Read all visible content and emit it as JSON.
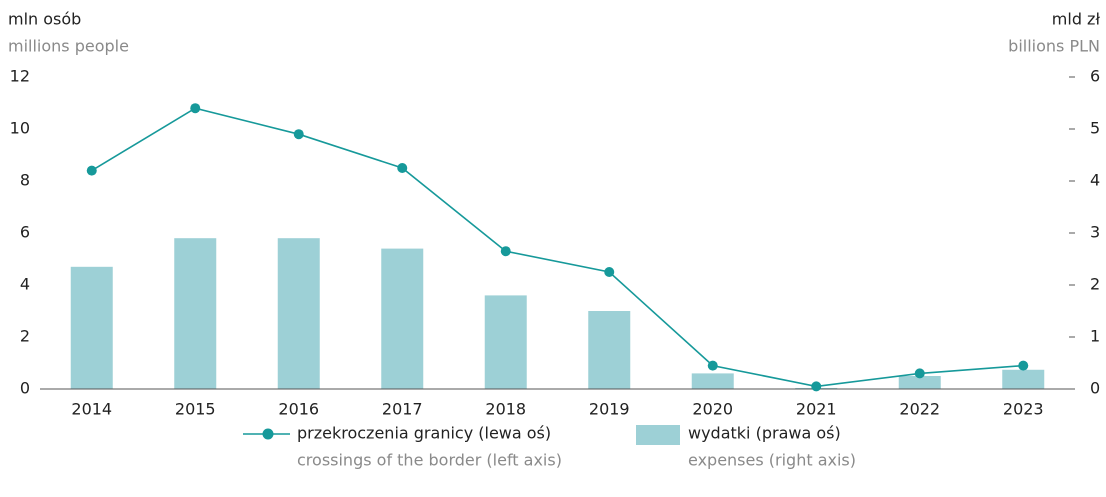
{
  "chart_data": {
    "type": "bar_line",
    "y_label": "mln osób",
    "y_label_en": "millions people",
    "y2_label": "mld zł",
    "y2_label_en": "billions PLN",
    "categories": [
      "2014",
      "2015",
      "2016",
      "2017",
      "2018",
      "2019",
      "2020",
      "2021",
      "2022",
      "2023"
    ],
    "series": [
      {
        "name": "przekroczenia granicy (lewa oś)",
        "name_en": "crossings of the border (left axis)",
        "type": "line",
        "color": "#16999a",
        "values": [
          8.4,
          10.8,
          9.8,
          8.5,
          5.3,
          4.5,
          0.9,
          0.1,
          0.6,
          0.9
        ]
      },
      {
        "name": "wydatki (prawa oś)",
        "name_en": "expenses (right axis)",
        "type": "bar",
        "color": "#9dd0d6",
        "axis": "y2",
        "values": [
          2.35,
          2.9,
          2.9,
          2.7,
          1.8,
          1.5,
          0.3,
          0.02,
          0.25,
          0.37
        ]
      }
    ],
    "ylim": [
      0,
      12
    ],
    "yticks": [
      0,
      2,
      4,
      6,
      8,
      10,
      12
    ],
    "y2lim": [
      0,
      6
    ],
    "y2ticks": [
      0,
      1,
      2,
      3,
      4,
      5,
      6
    ]
  }
}
